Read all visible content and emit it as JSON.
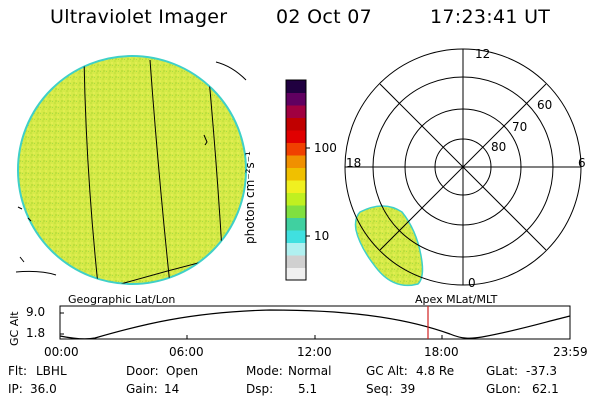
{
  "header": {
    "instrument": "Ultraviolet Imager",
    "date": "02 Oct 07",
    "time": "17:23:41 UT"
  },
  "colorbar": {
    "unit_label": "photon cm⁻²s⁻¹",
    "ticks": [
      "100",
      "10"
    ],
    "colors": [
      "#f0f0f0",
      "#d0d0d0",
      "#b0f0f0",
      "#40e0e0",
      "#40d0a0",
      "#80e040",
      "#c0f020",
      "#f0f020",
      "#f0c000",
      "#f09000",
      "#f04000",
      "#e00000",
      "#c00000",
      "#a00040",
      "#600060",
      "#200040"
    ]
  },
  "geo_panel": {
    "label": "Geographic Lat/Lon",
    "colors": {
      "fill": "#d4e84a",
      "edge": "#3fd0c8",
      "grid": "#000000"
    }
  },
  "polar_panel": {
    "label": "Apex MLat/MLT",
    "mlt_labels": {
      "top": "12",
      "left": "18",
      "right": "6",
      "bottom": "0"
    },
    "lat_labels": [
      "60",
      "70",
      "80"
    ]
  },
  "altitude_plot": {
    "ylabel": "GC Alt",
    "yticks": [
      "9.0",
      "1.8"
    ],
    "xticks": [
      "00:00",
      "06:00",
      "12:00",
      "18:00",
      "23:59"
    ],
    "marker_color": "#d02020"
  },
  "status": {
    "row1": [
      {
        "key": "Flt:",
        "value": "LBHL"
      },
      {
        "key": "Door:",
        "value": "Open"
      },
      {
        "key": "Mode:",
        "value": "Normal"
      },
      {
        "key": "GC Alt:",
        "value": "4.8 Re"
      },
      {
        "key": "GLat:",
        "value": "-37.3"
      }
    ],
    "row2": [
      {
        "key": "IP:",
        "value": "36.0"
      },
      {
        "key": "Gain:",
        "value": "14"
      },
      {
        "key": "Dsp:",
        "value": "5.1"
      },
      {
        "key": "Seq:",
        "value": "39"
      },
      {
        "key": "GLon:",
        "value": "62.1"
      }
    ]
  }
}
